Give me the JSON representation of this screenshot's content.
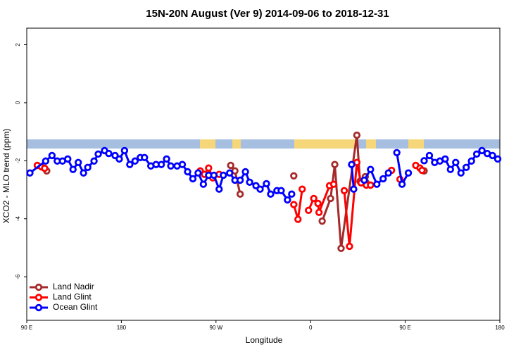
{
  "chart_data": {
    "type": "line",
    "title": "15N-20N August (Ver 9)   2014-09-06 to 2018-12-31",
    "x_label": "Longitude",
    "y_label": "XCO2 - MLO trend (ppm)",
    "xlim": [
      90,
      540
    ],
    "ylim": [
      -7.5,
      2.57
    ],
    "xticks": [
      {
        "value": 90,
        "label": "90 E"
      },
      180,
      {
        "value": 270,
        "label": "90 W"
      },
      {
        "value": 360,
        "label": "0"
      },
      {
        "value": 450,
        "label": "90 E"
      },
      {
        "value": 540,
        "label": "180"
      }
    ],
    "yticks": [
      -6,
      -4,
      -2,
      0,
      2
    ],
    "legend": "bottom-left",
    "series": [
      {
        "name": "Land Nadir",
        "color": "#a52a2a",
        "x": [
          109,
          null,
          284,
          288,
          293,
          null,
          344,
          null,
          371,
          379,
          383,
          389,
          404,
          407,
          412,
          417,
          null,
          468
        ],
        "values": [
          -2.35,
          null,
          -2.16,
          -2.35,
          -3.15,
          null,
          -2.52,
          null,
          -4.08,
          -3.3,
          -2.13,
          -5.02,
          -1.12,
          -2.71,
          -2.55,
          -2.84,
          null,
          -2.35
        ]
      },
      {
        "name": "Land Glint",
        "color": "#ff0000",
        "x": [
          100,
          104,
          107,
          null,
          255,
          259,
          263,
          267,
          273,
          null,
          344,
          348,
          352,
          null,
          358,
          363,
          367,
          368,
          378,
          382,
          null,
          392,
          397,
          404,
          408,
          413,
          417,
          null,
          437,
          null,
          445,
          null,
          460,
          464,
          466
        ],
        "values": [
          -2.16,
          -2.21,
          -2.26,
          null,
          -2.35,
          -2.47,
          -2.25,
          -2.59,
          -2.47,
          null,
          -3.51,
          -4.02,
          -2.98,
          null,
          -3.71,
          -3.3,
          -3.47,
          -3.78,
          -2.86,
          -2.81,
          null,
          -3.03,
          -4.95,
          -2.06,
          -2.76,
          -2.84,
          -2.84,
          null,
          -2.33,
          null,
          -2.64,
          null,
          -2.16,
          -2.25,
          -2.33
        ]
      },
      {
        "name": "Ocean Glint",
        "color": "#0000ff",
        "x": [
          93,
          108,
          114,
          119,
          124,
          129,
          134,
          139,
          144,
          148,
          154,
          158,
          164,
          168,
          174,
          178,
          183,
          188,
          193,
          198,
          202,
          208,
          213,
          218,
          223,
          227,
          233,
          238,
          243,
          248,
          253,
          258,
          263,
          268,
          273,
          277,
          283,
          288,
          293,
          298,
          302,
          308,
          312,
          318,
          322,
          328,
          332,
          338,
          342,
          null,
          399,
          401,
          null,
          411,
          417,
          423,
          429,
          434,
          null,
          442,
          447,
          453,
          null,
          468,
          473,
          478,
          483,
          488,
          493,
          498,
          503,
          508,
          513,
          518,
          523,
          528,
          533,
          538
        ],
        "values": [
          -2.42,
          -2.01,
          -1.82,
          -2.01,
          -2.01,
          -1.94,
          -2.3,
          -2.06,
          -2.42,
          -2.23,
          -2.01,
          -1.77,
          -1.65,
          -1.75,
          -1.82,
          -1.94,
          -1.65,
          -2.13,
          -2.01,
          -1.89,
          -1.89,
          -2.18,
          -2.13,
          -2.13,
          -1.94,
          -2.18,
          -2.18,
          -2.13,
          -2.38,
          -2.62,
          -2.42,
          -2.81,
          -2.5,
          -2.5,
          -2.98,
          -2.5,
          -2.42,
          -2.67,
          -2.67,
          -2.38,
          -2.74,
          -2.86,
          -2.98,
          -2.79,
          -3.15,
          -3.03,
          -3.03,
          -3.35,
          -3.15,
          null,
          -2.13,
          -2.98,
          null,
          -2.67,
          -2.3,
          -2.81,
          -2.62,
          -2.42,
          null,
          -1.72,
          -2.81,
          -2.42,
          null,
          -2.0,
          -1.82,
          -2.06,
          -2.01,
          -1.94,
          -2.3,
          -2.06,
          -2.42,
          -2.23,
          -2.01,
          -1.77,
          -1.65,
          -1.75,
          -1.82,
          -1.94
        ]
      }
    ]
  }
}
